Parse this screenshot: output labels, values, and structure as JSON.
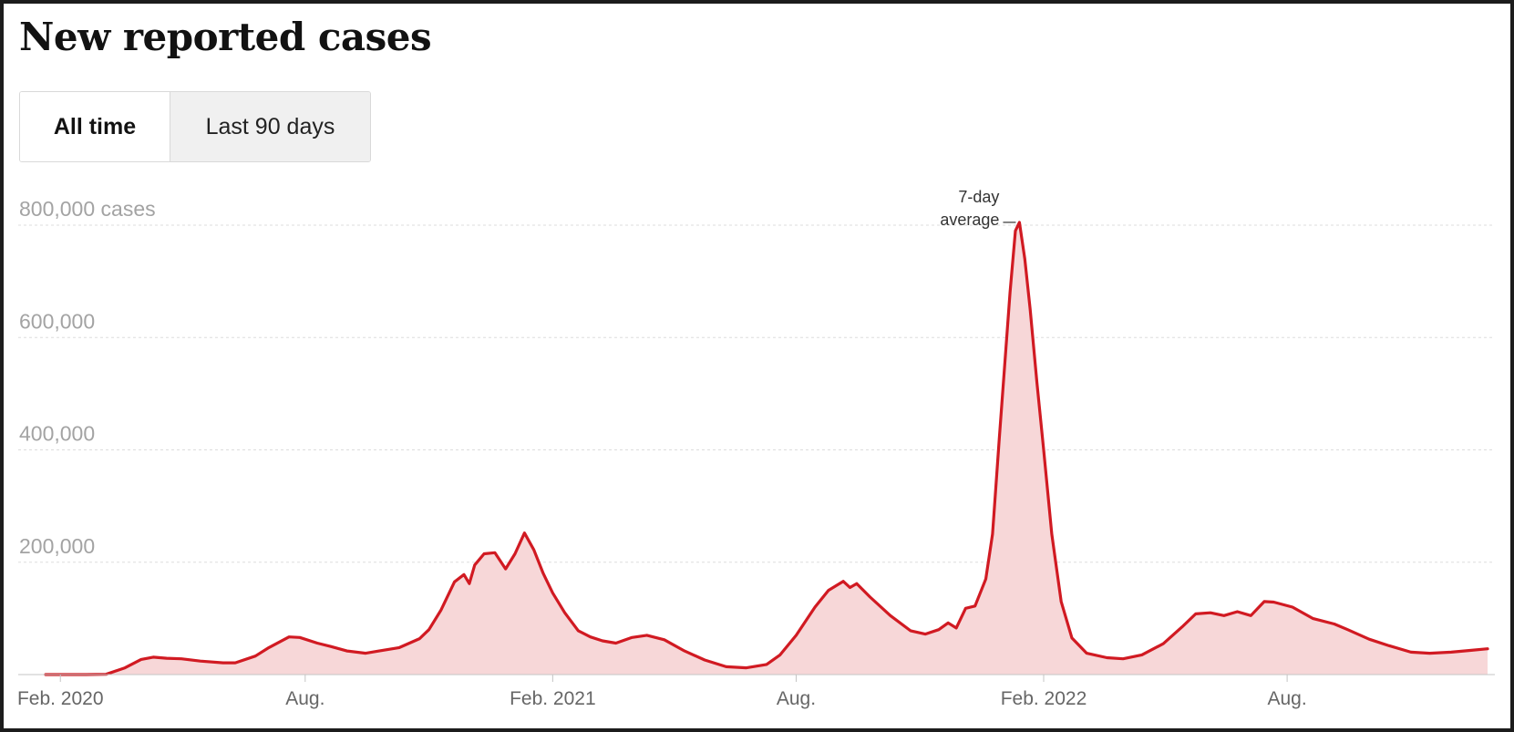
{
  "header": {
    "title": "New reported cases"
  },
  "toggle": {
    "options": [
      {
        "label": "All time",
        "selected": true
      },
      {
        "label": "Last 90 days",
        "selected": false
      }
    ]
  },
  "colors": {
    "line": "#d11a22",
    "fill": "#f7d7d8",
    "grid": "#dddddd",
    "axis": "#c4c4c4"
  },
  "chart_data": {
    "type": "area",
    "x_type": "date",
    "xlim": [
      "2020-01-21",
      "2022-12-28"
    ],
    "ylim": [
      0,
      800000
    ],
    "grid": true,
    "y_ticks": [
      {
        "value": 200000,
        "label": "200,000"
      },
      {
        "value": 400000,
        "label": "400,000"
      },
      {
        "value": 600000,
        "label": "600,000"
      },
      {
        "value": 800000,
        "label": "800,000 cases"
      }
    ],
    "x_ticks": [
      {
        "date": "2020-02-01",
        "label": "Feb. 2020"
      },
      {
        "date": "2020-08-01",
        "label": "Aug."
      },
      {
        "date": "2021-02-01",
        "label": "Feb. 2021"
      },
      {
        "date": "2021-08-01",
        "label": "Aug."
      },
      {
        "date": "2022-02-01",
        "label": "Feb. 2022"
      },
      {
        "date": "2022-08-01",
        "label": "Aug."
      }
    ],
    "annotation": {
      "lines": [
        "7-day",
        "average"
      ],
      "date": "2022-01-14",
      "value": 805000
    },
    "series": [
      {
        "points": [
          [
            "2020-01-21",
            0
          ],
          [
            "2020-02-20",
            0
          ],
          [
            "2020-03-06",
            500
          ],
          [
            "2020-03-20",
            12000
          ],
          [
            "2020-04-01",
            27000
          ],
          [
            "2020-04-10",
            31000
          ],
          [
            "2020-04-20",
            29000
          ],
          [
            "2020-05-01",
            28000
          ],
          [
            "2020-05-15",
            24000
          ],
          [
            "2020-06-01",
            21000
          ],
          [
            "2020-06-10",
            21000
          ],
          [
            "2020-06-25",
            33000
          ],
          [
            "2020-07-05",
            48000
          ],
          [
            "2020-07-20",
            67000
          ],
          [
            "2020-07-28",
            66000
          ],
          [
            "2020-08-10",
            56000
          ],
          [
            "2020-08-20",
            50000
          ],
          [
            "2020-09-01",
            42000
          ],
          [
            "2020-09-15",
            38000
          ],
          [
            "2020-09-25",
            42000
          ],
          [
            "2020-10-10",
            48000
          ],
          [
            "2020-10-25",
            64000
          ],
          [
            "2020-11-01",
            80000
          ],
          [
            "2020-11-10",
            115000
          ],
          [
            "2020-11-20",
            165000
          ],
          [
            "2020-11-27",
            178000
          ],
          [
            "2020-12-01",
            162000
          ],
          [
            "2020-12-05",
            195000
          ],
          [
            "2020-12-12",
            215000
          ],
          [
            "2020-12-20",
            217000
          ],
          [
            "2020-12-28",
            188000
          ],
          [
            "2021-01-04",
            215000
          ],
          [
            "2021-01-11",
            252000
          ],
          [
            "2021-01-18",
            222000
          ],
          [
            "2021-01-25",
            180000
          ],
          [
            "2021-02-01",
            145000
          ],
          [
            "2021-02-10",
            110000
          ],
          [
            "2021-02-20",
            78000
          ],
          [
            "2021-03-01",
            67000
          ],
          [
            "2021-03-10",
            60000
          ],
          [
            "2021-03-20",
            56000
          ],
          [
            "2021-04-01",
            66000
          ],
          [
            "2021-04-12",
            70000
          ],
          [
            "2021-04-25",
            62000
          ],
          [
            "2021-05-10",
            42000
          ],
          [
            "2021-05-25",
            26000
          ],
          [
            "2021-06-10",
            14000
          ],
          [
            "2021-06-25",
            12000
          ],
          [
            "2021-07-10",
            18000
          ],
          [
            "2021-07-20",
            35000
          ],
          [
            "2021-08-01",
            70000
          ],
          [
            "2021-08-15",
            120000
          ],
          [
            "2021-08-25",
            150000
          ],
          [
            "2021-09-05",
            166000
          ],
          [
            "2021-09-10",
            155000
          ],
          [
            "2021-09-15",
            162000
          ],
          [
            "2021-09-25",
            138000
          ],
          [
            "2021-10-10",
            105000
          ],
          [
            "2021-10-25",
            78000
          ],
          [
            "2021-11-05",
            72000
          ],
          [
            "2021-11-15",
            80000
          ],
          [
            "2021-11-22",
            92000
          ],
          [
            "2021-11-28",
            83000
          ],
          [
            "2021-12-05",
            118000
          ],
          [
            "2021-12-12",
            122000
          ],
          [
            "2021-12-20",
            170000
          ],
          [
            "2021-12-25",
            250000
          ],
          [
            "2021-12-30",
            420000
          ],
          [
            "2022-01-03",
            550000
          ],
          [
            "2022-01-07",
            680000
          ],
          [
            "2022-01-11",
            790000
          ],
          [
            "2022-01-14",
            805000
          ],
          [
            "2022-01-18",
            740000
          ],
          [
            "2022-01-22",
            650000
          ],
          [
            "2022-01-27",
            520000
          ],
          [
            "2022-02-01",
            400000
          ],
          [
            "2022-02-07",
            250000
          ],
          [
            "2022-02-14",
            130000
          ],
          [
            "2022-02-22",
            65000
          ],
          [
            "2022-03-05",
            38000
          ],
          [
            "2022-03-20",
            30000
          ],
          [
            "2022-04-01",
            28000
          ],
          [
            "2022-04-15",
            35000
          ],
          [
            "2022-05-01",
            55000
          ],
          [
            "2022-05-15",
            85000
          ],
          [
            "2022-05-25",
            108000
          ],
          [
            "2022-06-05",
            110000
          ],
          [
            "2022-06-15",
            105000
          ],
          [
            "2022-06-25",
            112000
          ],
          [
            "2022-07-05",
            105000
          ],
          [
            "2022-07-15",
            130000
          ],
          [
            "2022-07-22",
            129000
          ],
          [
            "2022-08-05",
            120000
          ],
          [
            "2022-08-20",
            100000
          ],
          [
            "2022-09-05",
            90000
          ],
          [
            "2022-09-15",
            80000
          ],
          [
            "2022-10-01",
            63000
          ],
          [
            "2022-10-15",
            52000
          ],
          [
            "2022-11-01",
            40000
          ],
          [
            "2022-11-15",
            38000
          ],
          [
            "2022-12-01",
            40000
          ],
          [
            "2022-12-15",
            43000
          ],
          [
            "2022-12-28",
            46000
          ]
        ]
      }
    ]
  }
}
